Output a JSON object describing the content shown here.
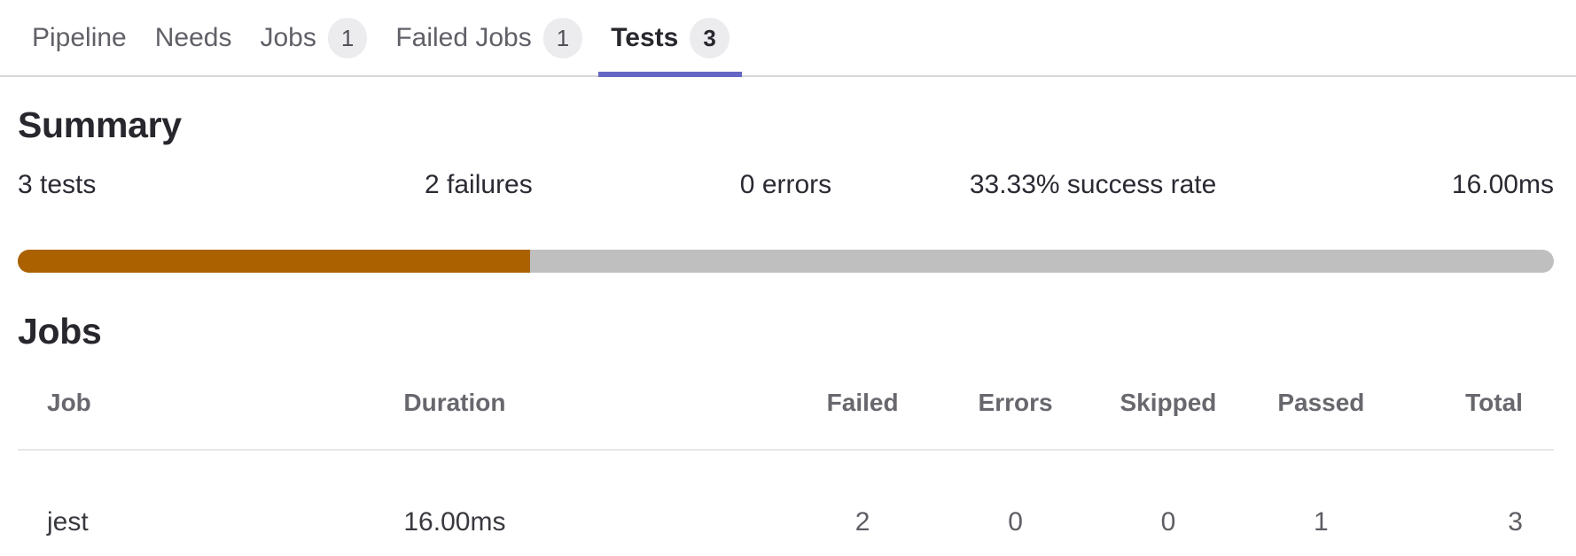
{
  "colors": {
    "accent": "#6666c4",
    "progress_fill": "#ab6100",
    "progress_track": "#bfbfbf"
  },
  "tabs": {
    "items": [
      {
        "label": "Pipeline"
      },
      {
        "label": "Needs"
      },
      {
        "label": "Jobs",
        "badge": "1"
      },
      {
        "label": "Failed Jobs",
        "badge": "1"
      },
      {
        "label": "Tests",
        "badge": "3",
        "active": true
      }
    ]
  },
  "summary": {
    "heading": "Summary",
    "stats": {
      "tests": "3 tests",
      "failures": "2 failures",
      "errors": "0 errors",
      "success_rate": "33.33% success rate",
      "duration": "16.00ms"
    },
    "progress_percent": 33.33
  },
  "jobs": {
    "heading": "Jobs",
    "table": {
      "columns": [
        "Job",
        "Duration",
        "Failed",
        "Errors",
        "Skipped",
        "Passed",
        "Total"
      ],
      "rows": [
        {
          "job": "jest",
          "duration": "16.00ms",
          "failed": "2",
          "errors": "0",
          "skipped": "0",
          "passed": "1",
          "total": "3"
        }
      ]
    }
  }
}
